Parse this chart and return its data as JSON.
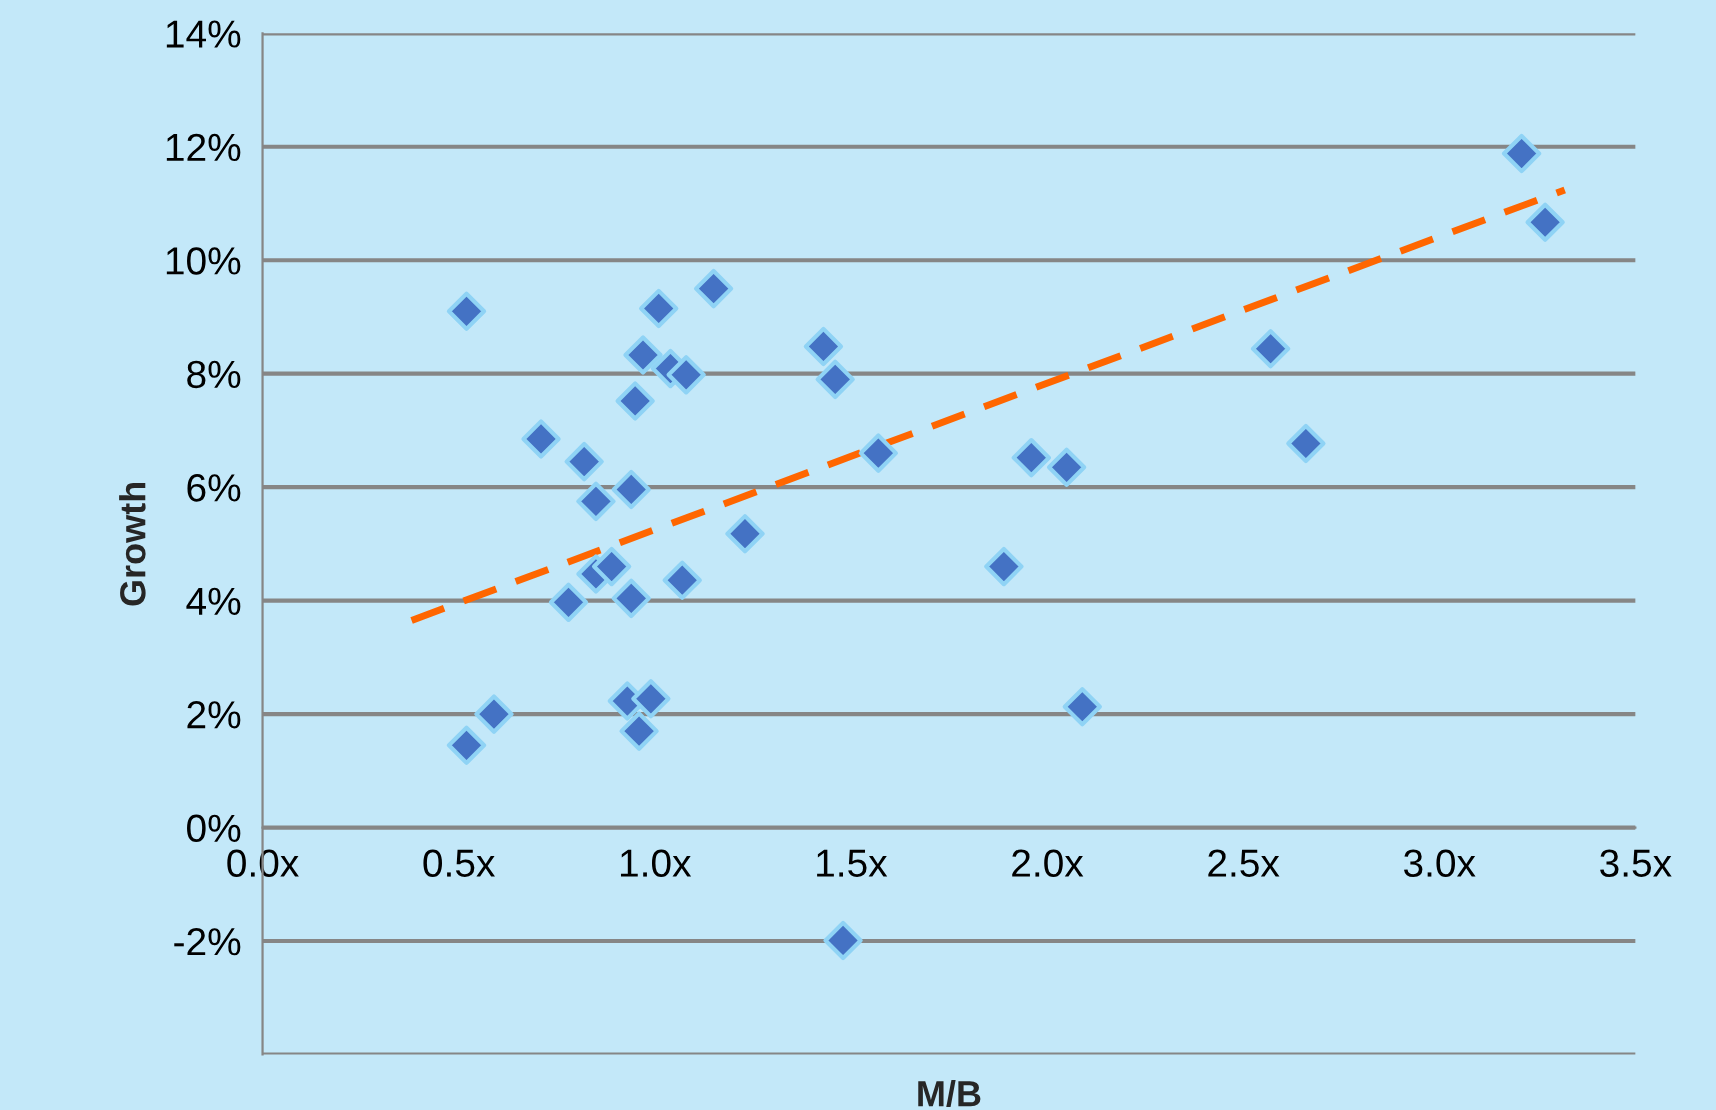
{
  "chart_data": {
    "type": "scatter",
    "xlabel": "M/B",
    "ylabel": "Growth",
    "xlim": [
      0,
      3.5
    ],
    "ylim": [
      -4,
      14
    ],
    "xticks": [
      {
        "value": 0,
        "label": "0.0x"
      },
      {
        "value": 0.5,
        "label": "0.5x"
      },
      {
        "value": 1,
        "label": "1.0x"
      },
      {
        "value": 1.5,
        "label": "1.5x"
      },
      {
        "value": 2,
        "label": "2.0x"
      },
      {
        "value": 2.5,
        "label": "2.5x"
      },
      {
        "value": 3,
        "label": "3.0x"
      },
      {
        "value": 3.5,
        "label": "3.5x"
      }
    ],
    "yticks": [
      {
        "value": -4,
        "label": null
      },
      {
        "value": -2,
        "label": "-2%"
      },
      {
        "value": 0,
        "label": "0%"
      },
      {
        "value": 2,
        "label": "2%"
      },
      {
        "value": 4,
        "label": "4%"
      },
      {
        "value": 6,
        "label": "6%"
      },
      {
        "value": 8,
        "label": "8%"
      },
      {
        "value": 10,
        "label": "10%"
      },
      {
        "value": 12,
        "label": "12%"
      },
      {
        "value": 14,
        "label": "14%"
      }
    ],
    "grid": "y",
    "series": [
      {
        "marker": "diamond",
        "color": "#4472c4",
        "x": [
          0.52,
          0.52,
          0.59,
          0.71,
          0.78,
          0.82,
          0.85,
          0.85,
          0.89,
          0.94,
          0.95,
          0.94,
          0.93,
          0.99,
          0.96,
          0.97,
          1.01,
          1.04,
          1.08,
          1.07,
          1.15,
          1.23,
          1.43,
          1.46,
          1.57,
          1.48,
          1.89,
          1.96,
          2.05,
          2.09,
          2.57,
          2.66,
          3.21,
          3.27
        ],
        "values": [
          9.1,
          1.45,
          2.0,
          6.85,
          3.97,
          6.45,
          5.75,
          4.47,
          4.6,
          5.96,
          7.52,
          4.04,
          2.23,
          2.27,
          1.7,
          8.33,
          9.15,
          8.09,
          7.98,
          4.36,
          9.5,
          5.18,
          8.48,
          7.9,
          6.6,
          -1.99,
          4.6,
          6.52,
          6.35,
          2.13,
          8.44,
          6.77,
          11.88,
          10.67
        ]
      },
      {
        "type": "line",
        "color": "#ff6600",
        "line_style": "dashed",
        "x": [
          0.38,
          3.32
        ],
        "values": [
          3.65,
          11.24
        ]
      }
    ]
  }
}
